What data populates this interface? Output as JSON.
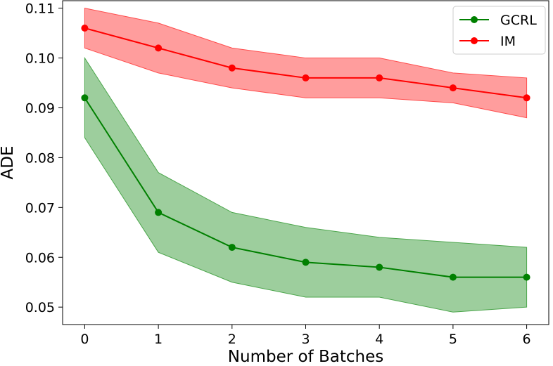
{
  "chart_data": {
    "type": "line",
    "title": "",
    "xlabel": "Number of Batches",
    "ylabel": "ADE",
    "x": [
      0,
      1,
      2,
      3,
      4,
      5,
      6
    ],
    "xlim": [
      -0.3,
      6.3
    ],
    "ylim": [
      0.0465,
      0.1115
    ],
    "xticks": [
      "0",
      "1",
      "2",
      "3",
      "4",
      "5",
      "6"
    ],
    "yticks": [
      "0.05",
      "0.06",
      "0.07",
      "0.08",
      "0.09",
      "0.10",
      "0.11"
    ],
    "ytick_values": [
      0.05,
      0.06,
      0.07,
      0.08,
      0.09,
      0.1,
      0.11
    ],
    "grid": false,
    "legend_position": "top-right",
    "series": [
      {
        "name": "GCRL",
        "color": "#008000",
        "band_color": "#4ca64c",
        "values": [
          0.092,
          0.069,
          0.062,
          0.059,
          0.058,
          0.056,
          0.056
        ],
        "lower": [
          0.084,
          0.061,
          0.055,
          0.052,
          0.052,
          0.049,
          0.05
        ],
        "upper": [
          0.1,
          0.077,
          0.069,
          0.066,
          0.064,
          0.063,
          0.062
        ]
      },
      {
        "name": "IM",
        "color": "#ff0000",
        "band_color": "#ff4d4d",
        "values": [
          0.106,
          0.102,
          0.098,
          0.096,
          0.096,
          0.094,
          0.092
        ],
        "lower": [
          0.102,
          0.097,
          0.094,
          0.092,
          0.092,
          0.091,
          0.088
        ],
        "upper": [
          0.11,
          0.107,
          0.102,
          0.1,
          0.1,
          0.097,
          0.096
        ]
      }
    ]
  }
}
